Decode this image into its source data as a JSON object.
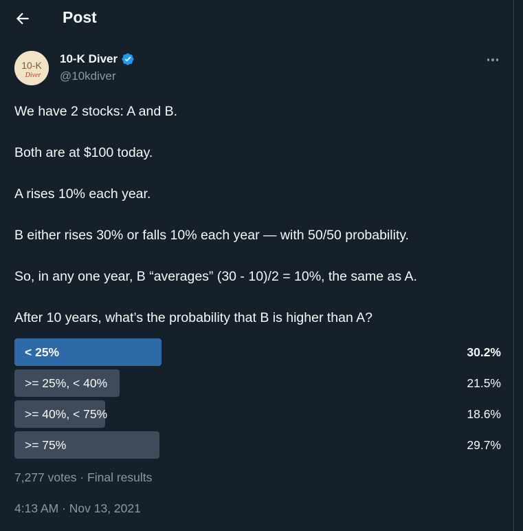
{
  "header": {
    "title": "Post"
  },
  "author": {
    "name": "10-K Diver",
    "handle": "@10kdiver",
    "avatar_text_top": "10-K",
    "avatar_text_bottom": "Diver"
  },
  "tweet": {
    "lines": [
      "We have 2 stocks: A and B.",
      "Both are at $100 today.",
      "A rises 10% each year.",
      "B either rises 30% or falls 10% each year — with 50/50 probability.",
      "So, in any one year, B “averages” (30 - 10)/2 = 10%, the same as A.",
      "After 10 years, what’s the probability that B is higher than A?"
    ]
  },
  "poll": {
    "options": [
      {
        "label": "< 25%",
        "percent_text": "30.2%",
        "percent": 30.2,
        "winner": true
      },
      {
        "label": ">= 25%, < 40%",
        "percent_text": "21.5%",
        "percent": 21.5,
        "winner": false
      },
      {
        "label": ">= 40%, < 75%",
        "percent_text": "18.6%",
        "percent": 18.6,
        "winner": false
      },
      {
        "label": ">= 75%",
        "percent_text": "29.7%",
        "percent": 29.7,
        "winner": false
      }
    ],
    "summary": "7,277 votes · Final results"
  },
  "timestamp": "4:13 AM · Nov 13, 2021",
  "colors": {
    "background": "#15202b",
    "winner_bar": "#2f6aa8",
    "loser_bar": "#3f4b5b",
    "muted_text": "#8b98a5",
    "verified": "#1d9bf0"
  }
}
